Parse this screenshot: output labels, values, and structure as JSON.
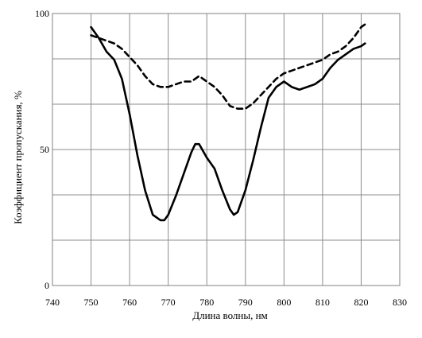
{
  "chart_data": {
    "type": "line",
    "title": "",
    "xlabel": "Длина волны, нм",
    "ylabel": "Коэффициент  пропускания, %",
    "xlim": [
      740,
      830
    ],
    "ylim": [
      0,
      100
    ],
    "x_ticks": [
      740,
      750,
      760,
      770,
      780,
      790,
      800,
      810,
      820,
      830
    ],
    "y_ticks": [
      0,
      50,
      100
    ],
    "x_tick_labels": [
      "740",
      "750",
      "760",
      "770",
      "780",
      "790",
      "800",
      "810",
      "820",
      "830"
    ],
    "y_tick_labels": [
      "0",
      "50",
      "100"
    ],
    "grid": true,
    "legend": "none",
    "series": [
      {
        "style": "solid",
        "color": "#000000",
        "x": [
          750,
          752,
          754,
          756,
          758,
          760,
          762,
          764,
          766,
          768,
          769,
          770,
          772,
          774,
          776,
          777,
          778,
          780,
          782,
          784,
          786,
          787,
          788,
          790,
          792,
          794,
          796,
          798,
          800,
          802,
          804,
          806,
          808,
          810,
          812,
          814,
          816,
          818,
          820,
          821
        ],
        "y": [
          95,
          91,
          86,
          83,
          76,
          63,
          48,
          35,
          26,
          24,
          24,
          26,
          33,
          41,
          49,
          52,
          52,
          47,
          43,
          35,
          28,
          26,
          27,
          35,
          46,
          58,
          69,
          73,
          75,
          73,
          72,
          73,
          74,
          76,
          80,
          83,
          85,
          87,
          88,
          89
        ]
      },
      {
        "style": "dashed",
        "color": "#000000",
        "x": [
          750,
          752,
          754,
          756,
          758,
          760,
          762,
          764,
          766,
          768,
          770,
          772,
          774,
          776,
          778,
          780,
          782,
          784,
          786,
          788,
          790,
          792,
          794,
          796,
          798,
          800,
          802,
          804,
          806,
          808,
          810,
          812,
          814,
          816,
          818,
          820,
          821
        ],
        "y": [
          92,
          91,
          90,
          89,
          87,
          84,
          81,
          77,
          74,
          73,
          73,
          74,
          75,
          75,
          77,
          75,
          73,
          70,
          66,
          65,
          65,
          67,
          70,
          73,
          76,
          78,
          79,
          80,
          81,
          82,
          83,
          85,
          86,
          88,
          91,
          95,
          96
        ]
      }
    ]
  }
}
